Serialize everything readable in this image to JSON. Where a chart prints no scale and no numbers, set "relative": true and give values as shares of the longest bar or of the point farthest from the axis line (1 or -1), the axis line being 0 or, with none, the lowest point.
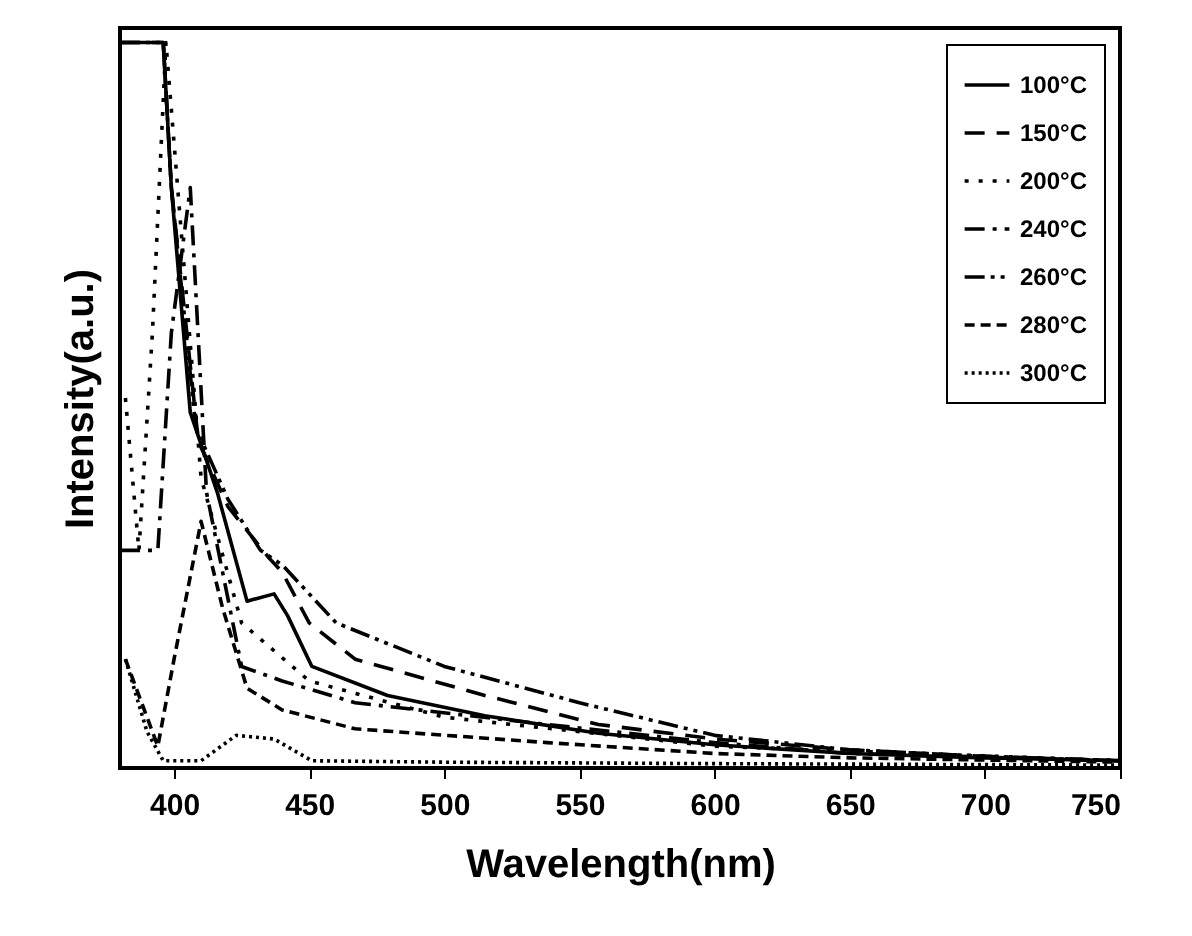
{
  "chart_data": {
    "type": "line",
    "relative": true,
    "xlabel": "Wavelength(nm)",
    "ylabel": "Intensity(a.u.)",
    "xlim": [
      380,
      750
    ],
    "xticks": [
      400,
      450,
      500,
      550,
      600,
      650,
      700,
      750
    ],
    "legend": "top right",
    "grid": false,
    "series": [
      {
        "name": "100°C",
        "color": "#000000",
        "line_style": "solid",
        "x": [
          380,
          396,
          399,
          406,
          416,
          427,
          437,
          442,
          451,
          479,
          515,
          557,
          600,
          650,
          700,
          750
        ],
        "values": [
          1,
          1,
          0.8,
          0.49,
          0.38,
          0.23,
          0.24,
          0.21,
          0.14,
          0.1,
          0.072,
          0.048,
          0.032,
          0.02,
          0.014,
          0.01
        ]
      },
      {
        "name": "150°C",
        "color": "#000000",
        "line_style": "dashed",
        "x": [
          380,
          396,
          399,
          409,
          420,
          435,
          440,
          450,
          467,
          515,
          557,
          600,
          650,
          700,
          750
        ],
        "values": [
          1,
          1,
          0.8,
          0.45,
          0.36,
          0.29,
          0.27,
          0.2,
          0.15,
          0.1,
          0.06,
          0.04,
          0.025,
          0.016,
          0.01
        ]
      },
      {
        "name": "200°C",
        "color": "#000000",
        "line_style": "dotted",
        "x": [
          382,
          387,
          392,
          397,
          410,
          425,
          450,
          500,
          600,
          750
        ],
        "values": [
          0.51,
          0.3,
          0.6,
          1,
          0.4,
          0.2,
          0.12,
          0.07,
          0.03,
          0.01
        ]
      },
      {
        "name": "240°C",
        "color": "#000000",
        "line_style": "dashdot",
        "x": [
          380,
          394,
          399,
          406,
          412,
          425,
          440,
          467,
          538,
          600,
          650,
          750
        ],
        "values": [
          0.3,
          0.3,
          0.6,
          0.8,
          0.38,
          0.14,
          0.12,
          0.09,
          0.06,
          0.035,
          0.02,
          0.01
        ]
      },
      {
        "name": "260°C",
        "color": "#000000",
        "line_style": "dashdotdot",
        "x": [
          380,
          396,
          399,
          408,
          420,
          432,
          440,
          460,
          500,
          550,
          600,
          650,
          700,
          750
        ],
        "values": [
          1,
          1,
          0.8,
          0.47,
          0.37,
          0.3,
          0.28,
          0.2,
          0.14,
          0.09,
          0.045,
          0.025,
          0.016,
          0.01
        ]
      },
      {
        "name": "280°C",
        "color": "#000000",
        "line_style": "shortdash",
        "x": [
          382,
          394,
          400,
          410,
          418,
          427,
          440,
          467,
          538,
          600,
          650,
          750
        ],
        "values": [
          0.15,
          0.03,
          0.15,
          0.34,
          0.22,
          0.11,
          0.08,
          0.054,
          0.035,
          0.02,
          0.014,
          0.008
        ]
      },
      {
        "name": "300°C",
        "color": "#000000",
        "line_style": "finedot",
        "x": [
          382,
          390,
          396,
          410,
          423,
          437,
          451,
          500,
          600,
          750
        ],
        "values": [
          0.15,
          0.05,
          0.01,
          0.01,
          0.045,
          0.04,
          0.01,
          0.008,
          0.006,
          0.004
        ]
      }
    ]
  }
}
